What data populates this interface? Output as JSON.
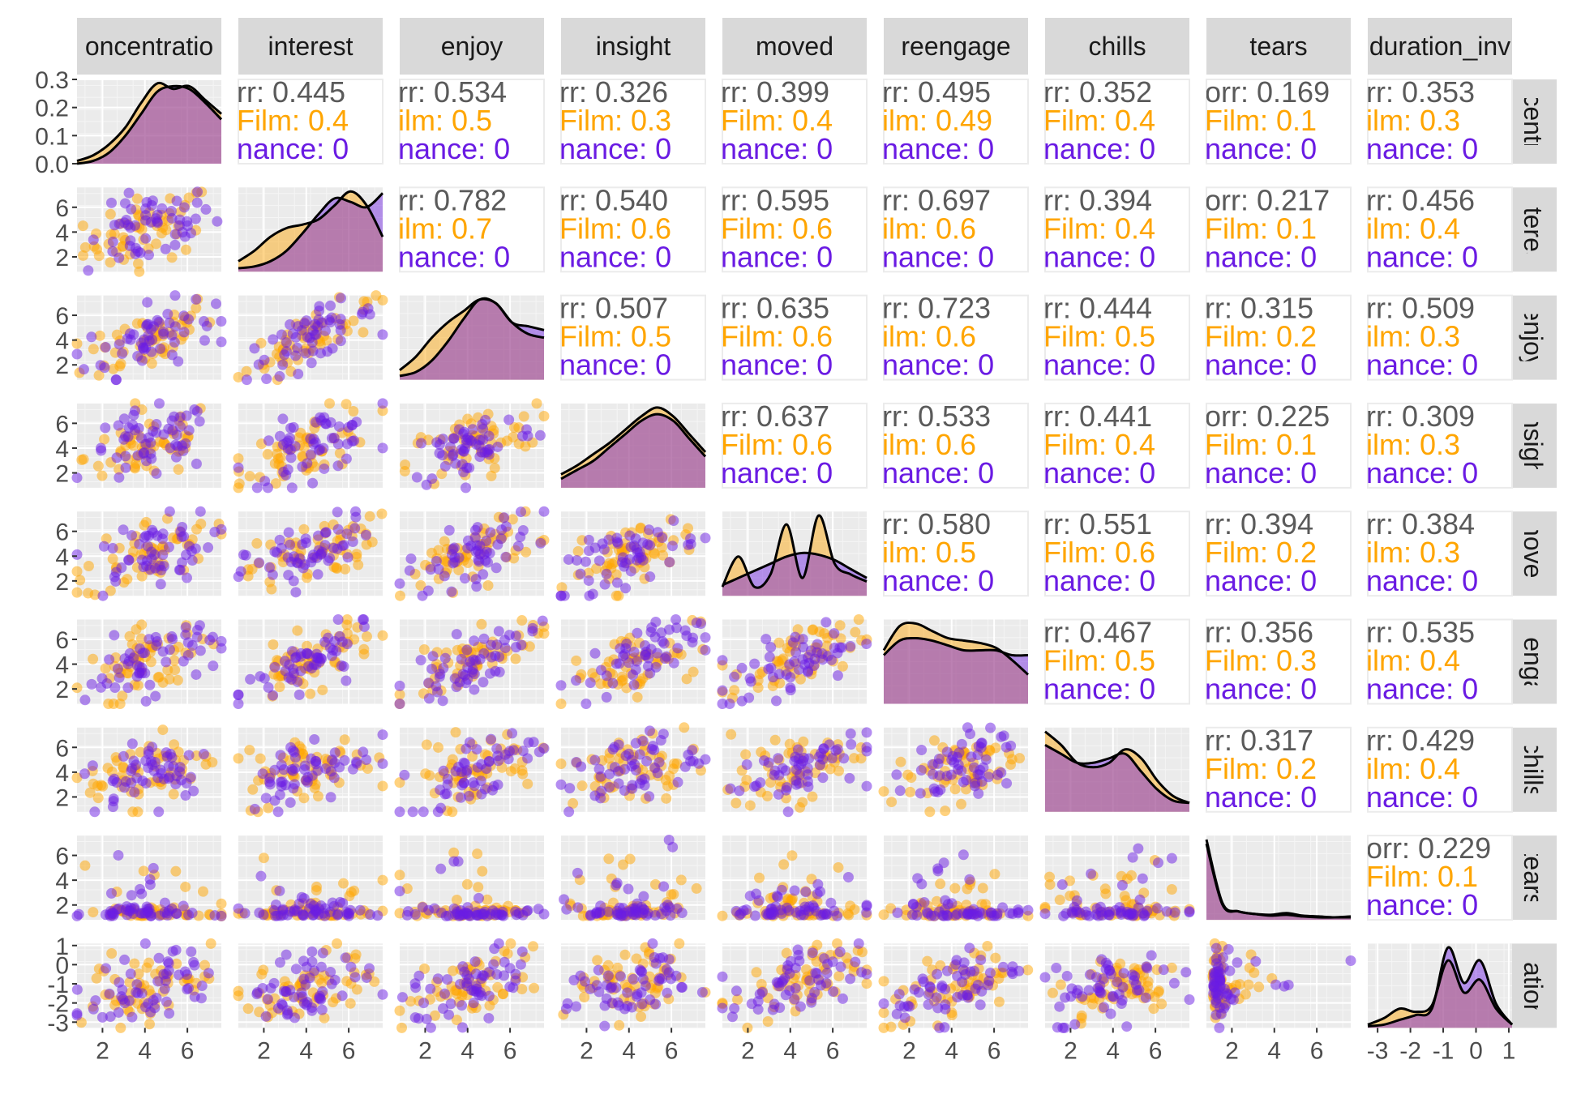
{
  "chart_data": {
    "type": "scatter",
    "matrix_kind": "pairs",
    "variables": [
      "concentration",
      "interest",
      "enjoy",
      "insight",
      "moved",
      "reengage",
      "chills",
      "tears",
      "duration_inv"
    ],
    "strip_labels_top": [
      "oncentratio",
      "interest",
      "enjoy",
      "insight",
      "moved",
      "reengage",
      "chills",
      "tears",
      "duration_inv"
    ],
    "strip_labels_right": [
      "oncentrati",
      "interest",
      "enjoy",
      "insight",
      "moved",
      "reengag",
      "chills",
      "tears",
      "uration_"
    ],
    "groups": [
      {
        "name": "Film",
        "color": "#FFA500"
      },
      {
        "name": "Performance",
        "color": "#6A1BE3"
      }
    ],
    "overall_color": "#555555",
    "corr_line_labels": [
      "rr: ",
      "Film: ",
      "nance: "
    ],
    "correlations_upper": [
      {
        "row": 0,
        "col": 1,
        "text": [
          "rr: 0.445",
          "Film: 0.4",
          "nance: 0"
        ]
      },
      {
        "row": 0,
        "col": 2,
        "text": [
          "rr: 0.534",
          "ilm: 0.5",
          "nance: 0"
        ]
      },
      {
        "row": 0,
        "col": 3,
        "text": [
          "rr: 0.326",
          "Film: 0.3",
          "nance: 0"
        ]
      },
      {
        "row": 0,
        "col": 4,
        "text": [
          "rr: 0.399",
          "Film: 0.4",
          "nance: 0"
        ]
      },
      {
        "row": 0,
        "col": 5,
        "text": [
          "rr: 0.495",
          "ilm: 0.49",
          "nance: 0"
        ]
      },
      {
        "row": 0,
        "col": 6,
        "text": [
          "rr: 0.352",
          "Film: 0.4",
          "nance: 0"
        ]
      },
      {
        "row": 0,
        "col": 7,
        "text": [
          "orr: 0.169",
          "Film: 0.1",
          "nance: 0"
        ]
      },
      {
        "row": 0,
        "col": 8,
        "text": [
          "rr: 0.353",
          "ilm: 0.3",
          "nance: 0"
        ]
      },
      {
        "row": 1,
        "col": 2,
        "text": [
          "rr: 0.782",
          "ilm: 0.7",
          "nance: 0"
        ]
      },
      {
        "row": 1,
        "col": 3,
        "text": [
          "rr: 0.540",
          "Film: 0.6",
          "nance: 0"
        ]
      },
      {
        "row": 1,
        "col": 4,
        "text": [
          "rr: 0.595",
          "Film: 0.6",
          "nance: 0"
        ]
      },
      {
        "row": 1,
        "col": 5,
        "text": [
          "rr: 0.697",
          "ilm: 0.6",
          "nance: 0"
        ]
      },
      {
        "row": 1,
        "col": 6,
        "text": [
          "rr: 0.394",
          "Film: 0.4",
          "nance: 0"
        ]
      },
      {
        "row": 1,
        "col": 7,
        "text": [
          "orr: 0.217",
          "Film: 0.1",
          "nance: 0"
        ]
      },
      {
        "row": 1,
        "col": 8,
        "text": [
          "rr: 0.456",
          "ilm: 0.4",
          "nance: 0"
        ]
      },
      {
        "row": 2,
        "col": 3,
        "text": [
          "rr: 0.507",
          "Film: 0.5",
          "nance: 0"
        ]
      },
      {
        "row": 2,
        "col": 4,
        "text": [
          "rr: 0.635",
          "Film: 0.6",
          "nance: 0"
        ]
      },
      {
        "row": 2,
        "col": 5,
        "text": [
          "rr: 0.723",
          "ilm: 0.6",
          "nance: 0"
        ]
      },
      {
        "row": 2,
        "col": 6,
        "text": [
          "rr: 0.444",
          "Film: 0.5",
          "nance: 0"
        ]
      },
      {
        "row": 2,
        "col": 7,
        "text": [
          "rr: 0.315",
          "Film: 0.2",
          "nance: 0"
        ]
      },
      {
        "row": 2,
        "col": 8,
        "text": [
          "rr: 0.509",
          "ilm: 0.3",
          "nance: 0"
        ]
      },
      {
        "row": 3,
        "col": 4,
        "text": [
          "rr: 0.637",
          "Film: 0.6",
          "nance: 0"
        ]
      },
      {
        "row": 3,
        "col": 5,
        "text": [
          "rr: 0.533",
          "ilm: 0.6",
          "nance: 0"
        ]
      },
      {
        "row": 3,
        "col": 6,
        "text": [
          "rr: 0.441",
          "Film: 0.4",
          "nance: 0"
        ]
      },
      {
        "row": 3,
        "col": 7,
        "text": [
          "orr: 0.225",
          "Film: 0.1",
          "nance: 0"
        ]
      },
      {
        "row": 3,
        "col": 8,
        "text": [
          "rr: 0.309",
          "ilm: 0.3",
          "nance: 0"
        ]
      },
      {
        "row": 4,
        "col": 5,
        "text": [
          "rr: 0.580",
          "ilm: 0.5",
          "nance: 0"
        ]
      },
      {
        "row": 4,
        "col": 6,
        "text": [
          "rr: 0.551",
          "Film: 0.6",
          "nance: 0"
        ]
      },
      {
        "row": 4,
        "col": 7,
        "text": [
          "rr: 0.394",
          "Film: 0.2",
          "nance: 0"
        ]
      },
      {
        "row": 4,
        "col": 8,
        "text": [
          "rr: 0.384",
          "ilm: 0.3",
          "nance: 0"
        ]
      },
      {
        "row": 5,
        "col": 6,
        "text": [
          "rr: 0.467",
          "Film: 0.5",
          "nance: 0"
        ]
      },
      {
        "row": 5,
        "col": 7,
        "text": [
          "rr: 0.356",
          "Film: 0.3",
          "nance: 0"
        ]
      },
      {
        "row": 5,
        "col": 8,
        "text": [
          "rr: 0.535",
          "ilm: 0.4",
          "nance: 0"
        ]
      },
      {
        "row": 6,
        "col": 7,
        "text": [
          "rr: 0.317",
          "Film: 0.2",
          "nance: 0"
        ]
      },
      {
        "row": 6,
        "col": 8,
        "text": [
          "rr: 0.429",
          "ilm: 0.4",
          "nance: 0"
        ]
      },
      {
        "row": 7,
        "col": 8,
        "text": [
          "orr: 0.229",
          "Film: 0.1",
          "nance: 0"
        ]
      }
    ],
    "x_axes": [
      {
        "var": "concentration",
        "ticks": [
          2,
          4,
          6
        ],
        "range": [
          0.8,
          7.6
        ]
      },
      {
        "var": "interest",
        "ticks": [
          2,
          4,
          6
        ],
        "range": [
          0.8,
          7.6
        ]
      },
      {
        "var": "enjoy",
        "ticks": [
          2,
          4,
          6
        ],
        "range": [
          0.8,
          7.6
        ]
      },
      {
        "var": "insight",
        "ticks": [
          2,
          4,
          6
        ],
        "range": [
          0.8,
          7.6
        ]
      },
      {
        "var": "moved",
        "ticks": [
          2,
          4,
          6
        ],
        "range": [
          0.8,
          7.6
        ]
      },
      {
        "var": "reengage",
        "ticks": [
          2,
          4,
          6
        ],
        "range": [
          0.8,
          7.6
        ]
      },
      {
        "var": "chills",
        "ticks": [
          2,
          4,
          6
        ],
        "range": [
          0.8,
          7.6
        ]
      },
      {
        "var": "tears",
        "ticks": [
          2,
          4,
          6
        ],
        "range": [
          0.8,
          7.6
        ]
      },
      {
        "var": "duration_inv",
        "ticks": [
          -3,
          -2,
          -1,
          0,
          1
        ],
        "range": [
          -3.3,
          1.1
        ]
      }
    ],
    "y_axes": [
      {
        "var": "concentration",
        "ticks": [
          "0.0",
          "0.1",
          "0.2",
          "0.3"
        ],
        "tick_values": [
          0,
          0.1,
          0.2,
          0.3
        ],
        "range": [
          0,
          0.3
        ]
      },
      {
        "var": "interest",
        "ticks": [
          "2",
          "4",
          "6"
        ],
        "tick_values": [
          2,
          4,
          6
        ],
        "range": [
          0.8,
          7.6
        ]
      },
      {
        "var": "enjoy",
        "ticks": [
          "2",
          "4",
          "6"
        ],
        "tick_values": [
          2,
          4,
          6
        ],
        "range": [
          0.8,
          7.6
        ]
      },
      {
        "var": "insight",
        "ticks": [
          "2",
          "4",
          "6"
        ],
        "tick_values": [
          2,
          4,
          6
        ],
        "range": [
          0.8,
          7.6
        ]
      },
      {
        "var": "moved",
        "ticks": [
          "2",
          "4",
          "6"
        ],
        "tick_values": [
          2,
          4,
          6
        ],
        "range": [
          0.8,
          7.6
        ]
      },
      {
        "var": "reengage",
        "ticks": [
          "2",
          "4",
          "6"
        ],
        "tick_values": [
          2,
          4,
          6
        ],
        "range": [
          0.8,
          7.6
        ]
      },
      {
        "var": "chills",
        "ticks": [
          "2",
          "4",
          "6"
        ],
        "tick_values": [
          2,
          4,
          6
        ],
        "range": [
          0.8,
          7.6
        ]
      },
      {
        "var": "tears",
        "ticks": [
          "2",
          "4",
          "6"
        ],
        "tick_values": [
          2,
          4,
          6
        ],
        "range": [
          0.8,
          7.6
        ]
      },
      {
        "var": "duration_inv",
        "ticks": [
          "-3",
          "-2",
          "-1",
          "0",
          "1"
        ],
        "tick_values": [
          -3,
          -2,
          -1,
          0,
          1
        ],
        "range": [
          -3.3,
          1.1
        ]
      }
    ],
    "densities": [
      {
        "var": "concentration",
        "Film": [
          0.01,
          0.03,
          0.07,
          0.13,
          0.22,
          0.29,
          0.27,
          0.28,
          0.23,
          0.18
        ],
        "Performance": [
          0.0,
          0.01,
          0.04,
          0.1,
          0.18,
          0.26,
          0.28,
          0.27,
          0.22,
          0.16
        ]
      },
      {
        "var": "interest",
        "Film": [
          0.06,
          0.12,
          0.2,
          0.25,
          0.27,
          0.3,
          0.38,
          0.46,
          0.38,
          0.2
        ],
        "Performance": [
          0.02,
          0.03,
          0.06,
          0.12,
          0.22,
          0.33,
          0.42,
          0.4,
          0.37,
          0.45
        ]
      },
      {
        "var": "enjoy",
        "Film": [
          0.05,
          0.12,
          0.22,
          0.3,
          0.36,
          0.42,
          0.4,
          0.3,
          0.24,
          0.22
        ],
        "Performance": [
          0.02,
          0.04,
          0.1,
          0.2,
          0.32,
          0.42,
          0.4,
          0.3,
          0.28,
          0.26
        ]
      },
      {
        "var": "insight",
        "Film": [
          0.06,
          0.1,
          0.15,
          0.2,
          0.26,
          0.32,
          0.36,
          0.32,
          0.24,
          0.16
        ],
        "Performance": [
          0.04,
          0.08,
          0.12,
          0.18,
          0.24,
          0.3,
          0.33,
          0.3,
          0.22,
          0.14
        ]
      },
      {
        "var": "moved",
        "Film": [
          0.05,
          0.22,
          0.05,
          0.12,
          0.4,
          0.1,
          0.45,
          0.18,
          0.12,
          0.08
        ],
        "Performance": [
          0.06,
          0.1,
          0.14,
          0.18,
          0.22,
          0.24,
          0.23,
          0.2,
          0.15,
          0.1
        ]
      },
      {
        "var": "reengage",
        "Film": [
          0.22,
          0.32,
          0.33,
          0.3,
          0.27,
          0.26,
          0.25,
          0.23,
          0.18,
          0.12
        ],
        "Performance": [
          0.2,
          0.26,
          0.27,
          0.26,
          0.24,
          0.22,
          0.22,
          0.22,
          0.2,
          0.2
        ]
      },
      {
        "var": "chills",
        "Film": [
          0.36,
          0.3,
          0.22,
          0.2,
          0.22,
          0.28,
          0.24,
          0.14,
          0.07,
          0.04
        ],
        "Performance": [
          0.3,
          0.26,
          0.22,
          0.22,
          0.24,
          0.26,
          0.18,
          0.1,
          0.05,
          0.04
        ]
      },
      {
        "var": "tears",
        "Film": [
          0.95,
          0.2,
          0.1,
          0.07,
          0.05,
          0.06,
          0.04,
          0.03,
          0.03,
          0.04
        ],
        "Performance": [
          0.9,
          0.18,
          0.1,
          0.07,
          0.06,
          0.08,
          0.05,
          0.04,
          0.03,
          0.03
        ]
      },
      {
        "var": "duration_inv",
        "Film": [
          0.02,
          0.06,
          0.12,
          0.1,
          0.14,
          0.42,
          0.22,
          0.3,
          0.12,
          0.02
        ],
        "Performance": [
          0.01,
          0.02,
          0.05,
          0.08,
          0.12,
          0.5,
          0.28,
          0.42,
          0.15,
          0.02
        ]
      }
    ],
    "legend": "none",
    "grid": true
  }
}
